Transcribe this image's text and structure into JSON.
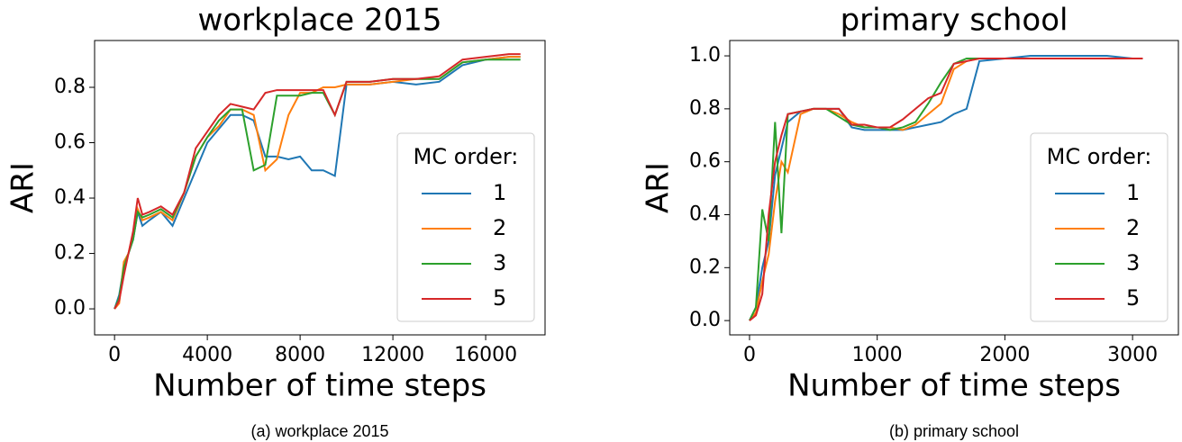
{
  "chart_data": [
    {
      "type": "line",
      "title": "workplace 2015",
      "x_label": "Number of time steps",
      "y_label": "ARI",
      "x": [
        0,
        200,
        400,
        600,
        800,
        1000,
        1200,
        1500,
        2000,
        2500,
        3000,
        3500,
        4000,
        4500,
        5000,
        5500,
        6000,
        6500,
        7000,
        7500,
        8000,
        8500,
        9000,
        9500,
        10000,
        11000,
        12000,
        13000,
        14000,
        15000,
        16000,
        17000,
        17500
      ],
      "series": [
        {
          "name": "1",
          "color": "#1f77b4",
          "values": [
            0,
            0.05,
            0.15,
            0.2,
            0.25,
            0.35,
            0.3,
            0.32,
            0.35,
            0.3,
            0.4,
            0.5,
            0.6,
            0.65,
            0.7,
            0.7,
            0.68,
            0.55,
            0.55,
            0.54,
            0.55,
            0.5,
            0.5,
            0.48,
            0.81,
            0.81,
            0.82,
            0.81,
            0.82,
            0.88,
            0.9,
            0.91,
            0.91
          ]
        },
        {
          "name": "2",
          "color": "#ff7f0e",
          "values": [
            0,
            0.02,
            0.17,
            0.2,
            0.27,
            0.36,
            0.32,
            0.33,
            0.35,
            0.32,
            0.42,
            0.55,
            0.62,
            0.66,
            0.72,
            0.72,
            0.7,
            0.5,
            0.54,
            0.7,
            0.78,
            0.78,
            0.8,
            0.8,
            0.81,
            0.81,
            0.82,
            0.83,
            0.83,
            0.89,
            0.9,
            0.91,
            0.91
          ]
        },
        {
          "name": "3",
          "color": "#2ca02c",
          "values": [
            0,
            0.04,
            0.15,
            0.2,
            0.25,
            0.35,
            0.33,
            0.34,
            0.36,
            0.33,
            0.42,
            0.55,
            0.62,
            0.68,
            0.72,
            0.72,
            0.5,
            0.52,
            0.77,
            0.77,
            0.77,
            0.78,
            0.78,
            0.7,
            0.82,
            0.82,
            0.83,
            0.83,
            0.83,
            0.89,
            0.9,
            0.9,
            0.9
          ]
        },
        {
          "name": "5",
          "color": "#d62728",
          "values": [
            0,
            0.03,
            0.12,
            0.2,
            0.28,
            0.4,
            0.34,
            0.35,
            0.37,
            0.34,
            0.42,
            0.58,
            0.64,
            0.7,
            0.74,
            0.73,
            0.72,
            0.78,
            0.79,
            0.79,
            0.79,
            0.79,
            0.79,
            0.7,
            0.82,
            0.82,
            0.83,
            0.83,
            0.84,
            0.9,
            0.91,
            0.92,
            0.92
          ]
        }
      ],
      "xlim": [
        -860,
        18560
      ],
      "ylim": [
        -0.094,
        0.969
      ],
      "xticks": [
        0,
        4000,
        8000,
        12000,
        16000
      ],
      "yticks": [
        {
          "value": 0,
          "label": "0.0"
        },
        0.2,
        0.4,
        0.6,
        0.8
      ],
      "legend_title": "MC order:",
      "legend": "lower right",
      "caption": "(a) workplace 2015"
    },
    {
      "type": "line",
      "title": "primary school",
      "x_label": "Number of time steps",
      "y_label": "ARI",
      "x": [
        0,
        50,
        100,
        150,
        200,
        250,
        300,
        400,
        500,
        600,
        700,
        800,
        900,
        1000,
        1100,
        1200,
        1300,
        1400,
        1500,
        1600,
        1700,
        1800,
        2000,
        2200,
        2500,
        2800,
        3000,
        3080
      ],
      "series": [
        {
          "name": "1",
          "color": "#1f77b4",
          "values": [
            0,
            0.05,
            0.2,
            0.3,
            0.55,
            0.65,
            0.75,
            0.79,
            0.8,
            0.8,
            0.8,
            0.73,
            0.72,
            0.72,
            0.72,
            0.72,
            0.73,
            0.74,
            0.75,
            0.78,
            0.8,
            0.98,
            0.99,
            1.0,
            1.0,
            1.0,
            0.99,
            0.99
          ]
        },
        {
          "name": "2",
          "color": "#ff7f0e",
          "values": [
            0,
            0.03,
            0.15,
            0.25,
            0.45,
            0.6,
            0.56,
            0.78,
            0.8,
            0.8,
            0.78,
            0.75,
            0.73,
            0.73,
            0.73,
            0.72,
            0.74,
            0.78,
            0.82,
            0.95,
            0.98,
            0.99,
            0.99,
            0.99,
            0.99,
            0.99,
            0.99,
            0.99
          ]
        },
        {
          "name": "3",
          "color": "#2ca02c",
          "values": [
            0,
            0.05,
            0.42,
            0.3,
            0.75,
            0.33,
            0.78,
            0.79,
            0.8,
            0.8,
            0.77,
            0.74,
            0.73,
            0.73,
            0.72,
            0.73,
            0.75,
            0.82,
            0.9,
            0.97,
            0.99,
            0.99,
            0.99,
            0.99,
            0.99,
            0.99,
            0.99,
            0.99
          ]
        },
        {
          "name": "5",
          "color": "#d62728",
          "values": [
            0,
            0.02,
            0.1,
            0.4,
            0.6,
            0.7,
            0.78,
            0.79,
            0.8,
            0.8,
            0.8,
            0.74,
            0.74,
            0.73,
            0.73,
            0.76,
            0.8,
            0.84,
            0.86,
            0.97,
            0.98,
            0.99,
            0.99,
            0.99,
            0.99,
            0.99,
            0.99,
            0.99
          ]
        }
      ],
      "xlim": [
        -155,
        3359
      ],
      "ylim": [
        -0.054,
        1.058
      ],
      "xticks": [
        0,
        1000,
        2000,
        3000
      ],
      "yticks": [
        {
          "value": 0,
          "label": "0.0"
        },
        0.2,
        0.4,
        0.6,
        0.8,
        {
          "value": 1,
          "label": "1.0"
        }
      ],
      "legend_title": "MC order:",
      "legend": "lower right",
      "caption": "(b) primary school"
    }
  ]
}
